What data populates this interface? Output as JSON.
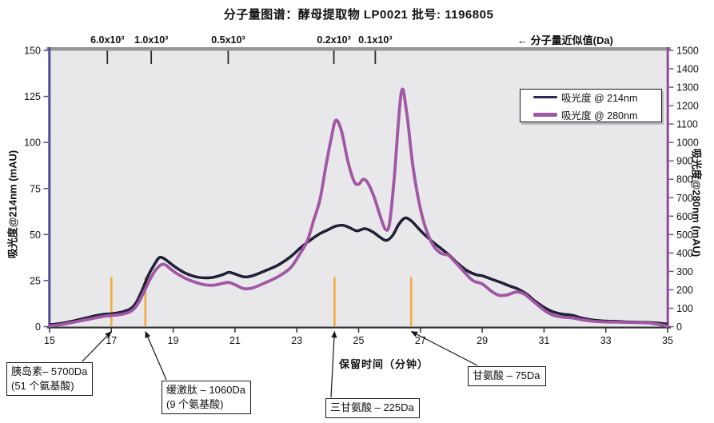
{
  "title": "分子量图谱：酵母提取物 LP0021  批号: 1196805",
  "mw_note": "← 分子量近似值(Da)",
  "x_axis_title": "保留时间（分钟）",
  "y_left_title": "吸光度@214nm (mAU)",
  "y_right_title": "吸光度@280nm (mAU)",
  "legend": {
    "series214_label": "吸光度 @ 214nm",
    "series280_label": "吸光度 @ 280nm"
  },
  "annotations": [
    {
      "line1": "胰岛素– 5700Da",
      "line2": "(51 个氨基酸)",
      "t": 17.0
    },
    {
      "line1": "缓激肽 – 1060Da",
      "line2": "(9 个氨基酸)",
      "t": 18.1
    },
    {
      "line1": "三甘氨酸 – 225Da",
      "line2": "",
      "t": 24.22
    },
    {
      "line1": "甘氨酸 – 75Da",
      "line2": "",
      "t": 26.7
    }
  ],
  "colors": {
    "plot_bg": "#E8E8EA",
    "top_band": "#97979B",
    "left_axis": "#4E4E96",
    "right_axis": "#8D4A9B",
    "bottom_axis": "#333336",
    "series214": "#26264E",
    "series214_edge": "#0a0a0a",
    "series280": "#A157A5",
    "marker": "#F2AE3C",
    "arrow": "#151515",
    "tick_text": "#111111"
  },
  "chart_data": {
    "type": "line",
    "title": "分子量图谱：酵母提取物 LP0021 批号: 1196805",
    "xlabel": "保留时间（分钟）",
    "x_ticks": [
      15,
      17,
      19,
      21,
      23,
      25,
      27,
      29,
      31,
      33,
      35
    ],
    "xlim": [
      15,
      35
    ],
    "y_left": {
      "label": "吸光度@214nm (mAU)",
      "lim": [
        0,
        150
      ],
      "ticks": [
        0,
        25,
        50,
        75,
        100,
        125,
        150
      ]
    },
    "y_right": {
      "label": "吸光度@280nm (mAU)",
      "lim": [
        0,
        1500
      ],
      "ticks": [
        0,
        100,
        200,
        300,
        400,
        500,
        600,
        700,
        800,
        900,
        1000,
        1100,
        1200,
        1300,
        1400,
        1500
      ]
    },
    "grid": false,
    "legend_position": "upper-right-inside",
    "mw_ticks": [
      {
        "label": "6.0x10³",
        "t": 16.87
      },
      {
        "label": "1.0x10³",
        "t": 18.29
      },
      {
        "label": "0.5x10³",
        "t": 20.78
      },
      {
        "label": "0.2x10³",
        "t": 24.2
      },
      {
        "label": "0.1x10³",
        "t": 25.54
      }
    ],
    "peak_markers_t": [
      17.0,
      18.1,
      24.22,
      26.7
    ],
    "peak_marker_height_mAU": 27,
    "series": [
      {
        "name": "吸光度 @ 214nm",
        "axis": "left",
        "units": "mAU",
        "points": [
          [
            15,
            1
          ],
          [
            15.4,
            1.8
          ],
          [
            15.8,
            3.2
          ],
          [
            16.2,
            4.8
          ],
          [
            16.5,
            6
          ],
          [
            16.8,
            6.8
          ],
          [
            17,
            7
          ],
          [
            17.3,
            7.8
          ],
          [
            17.6,
            9.5
          ],
          [
            17.8,
            13
          ],
          [
            18,
            20
          ],
          [
            18.2,
            28
          ],
          [
            18.4,
            34
          ],
          [
            18.55,
            37.5
          ],
          [
            18.7,
            37
          ],
          [
            18.9,
            34.5
          ],
          [
            19.1,
            32
          ],
          [
            19.4,
            29
          ],
          [
            19.7,
            27.2
          ],
          [
            20,
            26.5
          ],
          [
            20.3,
            26.8
          ],
          [
            20.6,
            28.2
          ],
          [
            20.8,
            29.5
          ],
          [
            21,
            28.6
          ],
          [
            21.3,
            27
          ],
          [
            21.6,
            27.8
          ],
          [
            22,
            30.5
          ],
          [
            22.4,
            33.5
          ],
          [
            22.8,
            38
          ],
          [
            23.1,
            42.5
          ],
          [
            23.4,
            46.5
          ],
          [
            23.7,
            50
          ],
          [
            24,
            52.5
          ],
          [
            24.25,
            54.5
          ],
          [
            24.5,
            55
          ],
          [
            24.7,
            53.8
          ],
          [
            24.95,
            52
          ],
          [
            25.2,
            53.2
          ],
          [
            25.45,
            51.5
          ],
          [
            25.7,
            48.5
          ],
          [
            25.9,
            46.8
          ],
          [
            26.1,
            49.5
          ],
          [
            26.3,
            55.5
          ],
          [
            26.5,
            59
          ],
          [
            26.7,
            57.5
          ],
          [
            26.9,
            54
          ],
          [
            27.1,
            50.5
          ],
          [
            27.4,
            46
          ],
          [
            27.7,
            42
          ],
          [
            27.95,
            38.5
          ],
          [
            28.2,
            34.5
          ],
          [
            28.5,
            30.5
          ],
          [
            28.8,
            28.2
          ],
          [
            29,
            27.6
          ],
          [
            29.3,
            25.8
          ],
          [
            29.6,
            24
          ],
          [
            29.9,
            22
          ],
          [
            30.15,
            20.5
          ],
          [
            30.45,
            17.5
          ],
          [
            30.7,
            14
          ],
          [
            31,
            10.5
          ],
          [
            31.3,
            8
          ],
          [
            31.6,
            6.8
          ],
          [
            31.9,
            6.2
          ],
          [
            32.2,
            4.8
          ],
          [
            32.5,
            3.8
          ],
          [
            32.9,
            3.1
          ],
          [
            33.3,
            2.9
          ],
          [
            33.7,
            2.6
          ],
          [
            34.1,
            2.4
          ],
          [
            34.5,
            2.2
          ],
          [
            35,
            1.4
          ]
        ]
      },
      {
        "name": "吸光度 @ 280nm",
        "axis": "right",
        "units": "mAU",
        "points": [
          [
            15,
            4
          ],
          [
            15.4,
            12
          ],
          [
            15.8,
            25
          ],
          [
            16.2,
            38
          ],
          [
            16.5,
            48
          ],
          [
            16.8,
            57
          ],
          [
            17,
            60
          ],
          [
            17.3,
            66
          ],
          [
            17.6,
            80
          ],
          [
            17.8,
            110
          ],
          [
            18,
            170
          ],
          [
            18.2,
            240
          ],
          [
            18.4,
            300
          ],
          [
            18.6,
            335
          ],
          [
            18.75,
            335
          ],
          [
            18.9,
            315
          ],
          [
            19.1,
            290
          ],
          [
            19.4,
            262
          ],
          [
            19.7,
            242
          ],
          [
            20,
            228
          ],
          [
            20.3,
            225
          ],
          [
            20.6,
            235
          ],
          [
            20.8,
            240
          ],
          [
            21,
            228
          ],
          [
            21.3,
            206
          ],
          [
            21.6,
            212
          ],
          [
            22,
            240
          ],
          [
            22.4,
            272
          ],
          [
            22.8,
            320
          ],
          [
            23.1,
            395
          ],
          [
            23.35,
            470
          ],
          [
            23.55,
            580
          ],
          [
            23.75,
            690
          ],
          [
            23.95,
            880
          ],
          [
            24.1,
            1010
          ],
          [
            24.26,
            1120
          ],
          [
            24.45,
            1060
          ],
          [
            24.65,
            900
          ],
          [
            24.85,
            790
          ],
          [
            25,
            773
          ],
          [
            25.15,
            800
          ],
          [
            25.3,
            780
          ],
          [
            25.5,
            705
          ],
          [
            25.7,
            600
          ],
          [
            25.87,
            528
          ],
          [
            26,
            560
          ],
          [
            26.15,
            800
          ],
          [
            26.38,
            1270
          ],
          [
            26.55,
            1170
          ],
          [
            26.75,
            880
          ],
          [
            26.95,
            680
          ],
          [
            27.15,
            545
          ],
          [
            27.4,
            445
          ],
          [
            27.65,
            400
          ],
          [
            27.9,
            388
          ],
          [
            28.1,
            355
          ],
          [
            28.4,
            300
          ],
          [
            28.7,
            250
          ],
          [
            29,
            232
          ],
          [
            29.3,
            192
          ],
          [
            29.55,
            170
          ],
          [
            29.8,
            172
          ],
          [
            30.1,
            188
          ],
          [
            30.35,
            178
          ],
          [
            30.6,
            145
          ],
          [
            31,
            90
          ],
          [
            31.3,
            62
          ],
          [
            31.6,
            52
          ],
          [
            31.9,
            48
          ],
          [
            32.2,
            38
          ],
          [
            32.5,
            31
          ],
          [
            32.9,
            26
          ],
          [
            33.3,
            25
          ],
          [
            33.7,
            23
          ],
          [
            34.1,
            22
          ],
          [
            34.5,
            18
          ],
          [
            35,
            3
          ]
        ]
      }
    ]
  }
}
